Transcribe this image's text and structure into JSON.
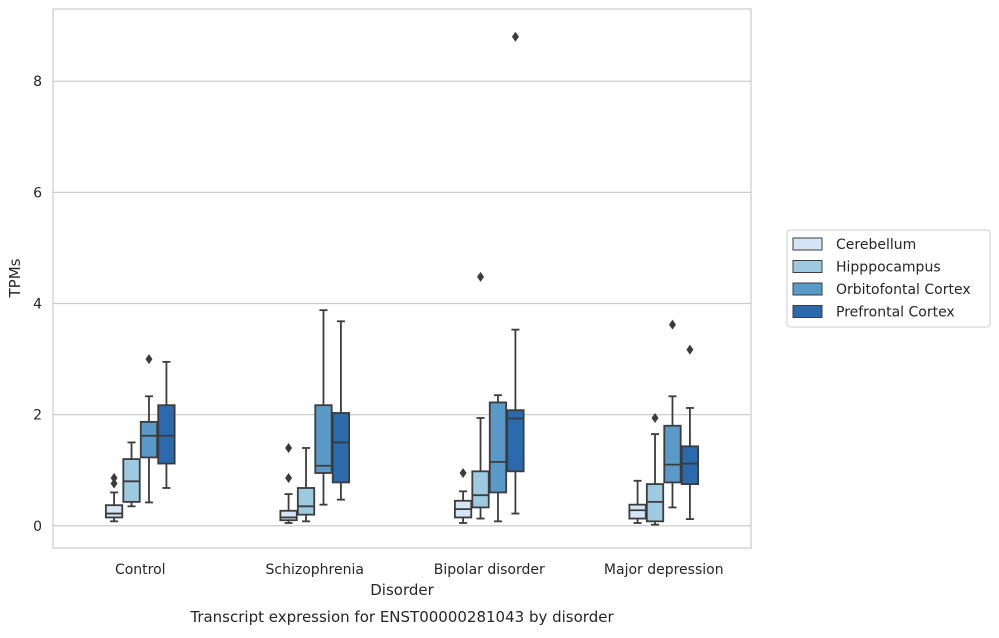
{
  "chart_data": {
    "type": "boxplot",
    "title": "Transcript expression for ENST00000281043 by disorder",
    "xlabel": "Disorder",
    "ylabel": "TPMs",
    "ylim": [
      -0.4,
      9.3
    ],
    "yticks": [
      0,
      2,
      4,
      6,
      8
    ],
    "grid": "horizontal",
    "legend_position": "right",
    "categories": [
      "Control",
      "Schizophrenia",
      "Bipolar disorder",
      "Major depression"
    ],
    "series": [
      {
        "name": "Cerebellum",
        "color": "#d6e5f3",
        "boxes": [
          {
            "whislo": 0.08,
            "q1": 0.15,
            "med": 0.22,
            "q3": 0.37,
            "whishi": 0.6,
            "fliers": [
              0.76,
              0.86
            ]
          },
          {
            "whislo": 0.05,
            "q1": 0.1,
            "med": 0.15,
            "q3": 0.27,
            "whishi": 0.57,
            "fliers": [
              0.86,
              1.4
            ]
          },
          {
            "whislo": 0.05,
            "q1": 0.15,
            "med": 0.3,
            "q3": 0.45,
            "whishi": 0.62,
            "fliers": [
              0.95
            ]
          },
          {
            "whislo": 0.05,
            "q1": 0.13,
            "med": 0.28,
            "q3": 0.38,
            "whishi": 0.81,
            "fliers": []
          }
        ]
      },
      {
        "name": "Hipppocampus",
        "color": "#9ecae1",
        "boxes": [
          {
            "whislo": 0.35,
            "q1": 0.43,
            "med": 0.8,
            "q3": 1.2,
            "whishi": 1.5,
            "fliers": []
          },
          {
            "whislo": 0.08,
            "q1": 0.2,
            "med": 0.35,
            "q3": 0.68,
            "whishi": 1.4,
            "fliers": []
          },
          {
            "whislo": 0.13,
            "q1": 0.33,
            "med": 0.55,
            "q3": 0.98,
            "whishi": 1.94,
            "fliers": [
              4.48
            ]
          },
          {
            "whislo": 0.02,
            "q1": 0.08,
            "med": 0.43,
            "q3": 0.75,
            "whishi": 1.65,
            "fliers": [
              1.94
            ]
          }
        ]
      },
      {
        "name": "Orbitofontal Cortex",
        "color": "#5a9ac9",
        "boxes": [
          {
            "whislo": 0.42,
            "q1": 1.23,
            "med": 1.62,
            "q3": 1.87,
            "whishi": 2.33,
            "fliers": [
              3.0
            ]
          },
          {
            "whislo": 0.38,
            "q1": 0.95,
            "med": 1.08,
            "q3": 2.17,
            "whishi": 3.88,
            "fliers": []
          },
          {
            "whislo": 0.08,
            "q1": 0.6,
            "med": 1.15,
            "q3": 2.22,
            "whishi": 2.35,
            "fliers": []
          },
          {
            "whislo": 0.33,
            "q1": 0.78,
            "med": 1.1,
            "q3": 1.8,
            "whishi": 2.33,
            "fliers": [
              3.62
            ]
          }
        ]
      },
      {
        "name": "Prefrontal Cortex",
        "color": "#2a6aad",
        "boxes": [
          {
            "whislo": 0.68,
            "q1": 1.12,
            "med": 1.62,
            "q3": 2.17,
            "whishi": 2.95,
            "fliers": []
          },
          {
            "whislo": 0.47,
            "q1": 0.78,
            "med": 1.5,
            "q3": 2.03,
            "whishi": 3.68,
            "fliers": []
          },
          {
            "whislo": 0.22,
            "q1": 0.98,
            "med": 1.93,
            "q3": 2.08,
            "whishi": 3.53,
            "fliers": [
              8.8
            ]
          },
          {
            "whislo": 0.12,
            "q1": 0.75,
            "med": 1.12,
            "q3": 1.43,
            "whishi": 2.12,
            "fliers": [
              3.17
            ]
          }
        ]
      }
    ]
  }
}
